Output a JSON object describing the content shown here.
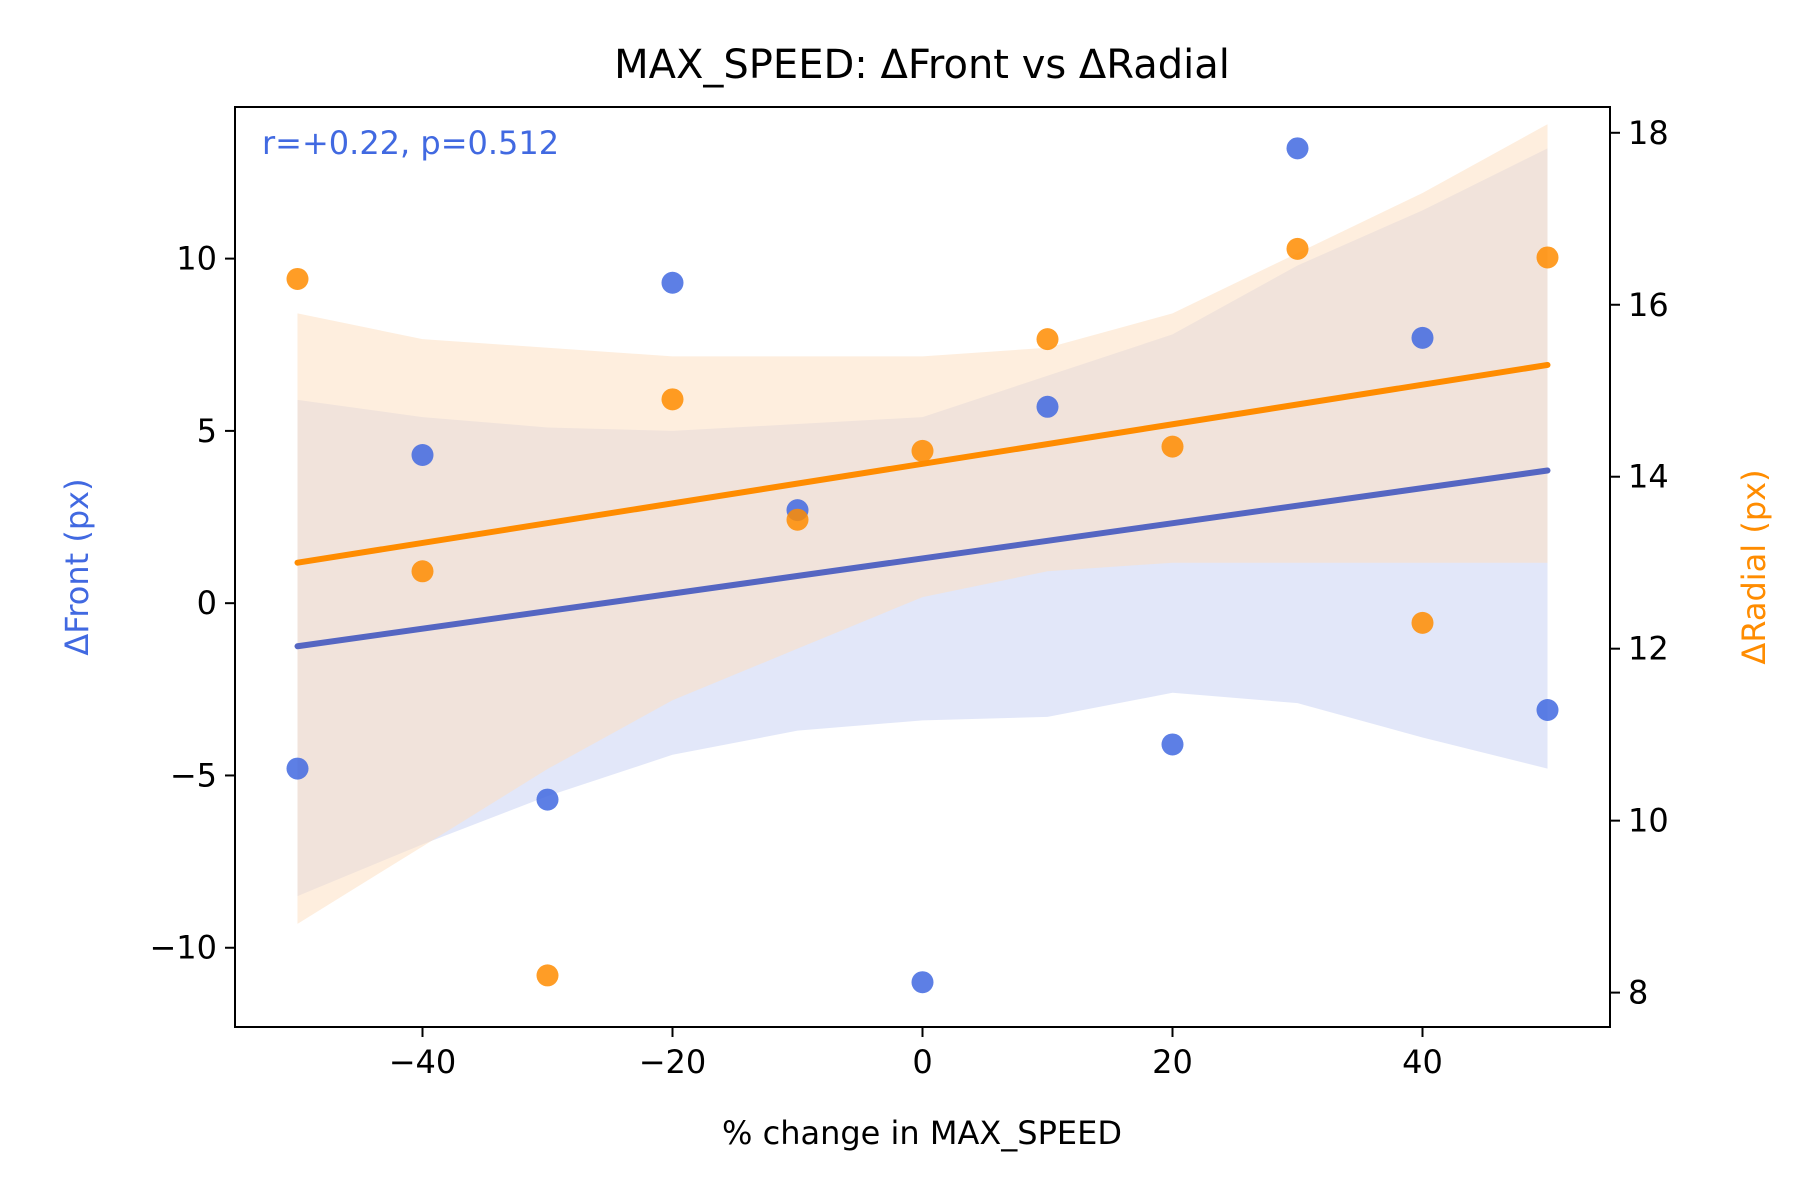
{
  "chart_data": {
    "type": "scatter",
    "title": "MAX_SPEED: ΔFront vs ΔRadial",
    "xlabel": "% change in MAX_SPEED",
    "ylabel_left": "ΔFront (px)",
    "ylabel_right": "ΔRadial (px)",
    "annotation": "r=+0.22, p=0.512",
    "xlim": [
      -55,
      55
    ],
    "ylim_left": [
      -12.3,
      14.4
    ],
    "ylim_right": [
      7.6,
      18.3
    ],
    "x_ticks": [
      -40,
      -20,
      0,
      20,
      40
    ],
    "x_tick_labels": [
      "−40",
      "−20",
      "0",
      "20",
      "40"
    ],
    "y_left_ticks": [
      -10,
      -5,
      0,
      5,
      10
    ],
    "y_left_tick_labels": [
      "−10",
      "−5",
      "0",
      "5",
      "10"
    ],
    "y_right_ticks": [
      8,
      10,
      12,
      14,
      16,
      18
    ],
    "y_right_tick_labels": [
      "8",
      "10",
      "12",
      "14",
      "16",
      "18"
    ],
    "grid": false,
    "series": [
      {
        "axis": "left",
        "color": "#4169e1",
        "line_color": "#5566c2",
        "band_color": "#c5cff3",
        "x": [
          -50,
          -40,
          -30,
          -20,
          -10,
          0,
          10,
          20,
          30,
          40,
          50
        ],
        "values": [
          -4.8,
          4.3,
          -5.7,
          9.3,
          2.7,
          -11.0,
          5.7,
          -4.1,
          13.2,
          7.7,
          -3.1
        ],
        "fit": {
          "x": [
            -50,
            50
          ],
          "y": [
            -1.25,
            3.85
          ]
        },
        "band": {
          "x": [
            -50,
            -40,
            -30,
            -20,
            -10,
            0,
            10,
            20,
            30,
            40,
            50
          ],
          "upper": [
            5.9,
            5.4,
            5.1,
            5.0,
            5.2,
            5.4,
            6.6,
            7.8,
            9.8,
            11.4,
            13.2
          ],
          "lower": [
            -8.5,
            -7.0,
            -5.6,
            -4.4,
            -3.7,
            -3.4,
            -3.3,
            -2.6,
            -2.9,
            -3.9,
            -4.8
          ]
        }
      },
      {
        "axis": "right",
        "color": "#ff8c00",
        "line_color": "#ff8c00",
        "band_color": "#fde0c2",
        "x": [
          -50,
          -40,
          -30,
          -20,
          -10,
          0,
          10,
          20,
          30,
          40,
          50
        ],
        "values": [
          16.3,
          12.9,
          8.2,
          14.9,
          13.5,
          14.3,
          15.6,
          14.35,
          16.65,
          12.3,
          16.55
        ],
        "fit": {
          "x": [
            -50,
            50
          ],
          "y": [
            13.0,
            15.3
          ]
        },
        "band": {
          "x": [
            -50,
            -40,
            -30,
            -20,
            -10,
            0,
            10,
            20,
            30,
            40,
            50
          ],
          "upper": [
            15.9,
            15.6,
            15.5,
            15.4,
            15.4,
            15.4,
            15.5,
            15.9,
            16.6,
            17.3,
            18.1
          ],
          "lower": [
            8.8,
            9.7,
            10.6,
            11.4,
            12.0,
            12.6,
            12.9,
            13.0,
            13.0,
            13.0,
            13.0
          ]
        }
      }
    ]
  }
}
